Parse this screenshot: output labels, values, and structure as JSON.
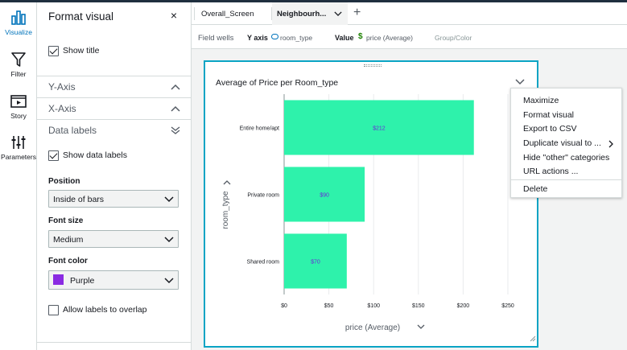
{
  "rail": {
    "items": [
      {
        "label": "Visualize",
        "icon": "bar-chart-icon"
      },
      {
        "label": "Filter",
        "icon": "funnel-icon"
      },
      {
        "label": "Story",
        "icon": "story-icon"
      },
      {
        "label": "Parameters",
        "icon": "sliders-icon"
      }
    ]
  },
  "panel": {
    "title": "Format visual",
    "close": "×",
    "show_title": "Show title",
    "sections": {
      "y_axis": "Y-Axis",
      "x_axis": "X-Axis",
      "data_labels": "Data labels"
    },
    "show_data_labels": "Show data labels",
    "position_label": "Position",
    "position_value": "Inside of bars",
    "font_size_label": "Font size",
    "font_size_value": "Medium",
    "font_color_label": "Font color",
    "font_color_value": "Purple",
    "font_color_hex": "#8a2be2",
    "allow_overlap": "Allow labels to overlap"
  },
  "tabs": {
    "items": [
      "Overall_Screen",
      "Neighbourh..."
    ],
    "add": "+"
  },
  "wells": {
    "title": "Field wells",
    "y_axis_label": "Y axis",
    "y_axis_field": "room_type",
    "value_label": "Value",
    "value_field": "price (Average)",
    "group_color": "Group/Color"
  },
  "visual": {
    "title": "Average of Price per Room_type"
  },
  "chart_data": {
    "type": "bar",
    "orientation": "horizontal",
    "categories": [
      "Entire home/apt",
      "Private room",
      "Shared room"
    ],
    "values": [
      212,
      90,
      70
    ],
    "data_labels": [
      "$212",
      "$90",
      "$70"
    ],
    "xlabel": "price (Average)",
    "ylabel": "room_type",
    "xlim": [
      0,
      250
    ],
    "xticks": [
      0,
      50,
      100,
      150,
      200,
      250
    ],
    "xtick_labels": [
      "$0",
      "$50",
      "$100",
      "$150",
      "$200",
      "$250"
    ],
    "bar_color": "#2ef2ab",
    "label_color": "#6a2bd8",
    "grid": true
  },
  "menu": {
    "items": [
      "Maximize",
      "Format visual",
      "Export to CSV",
      "Duplicate visual to ...",
      "Hide \"other\" categories",
      "URL actions ..."
    ],
    "delete": "Delete"
  }
}
